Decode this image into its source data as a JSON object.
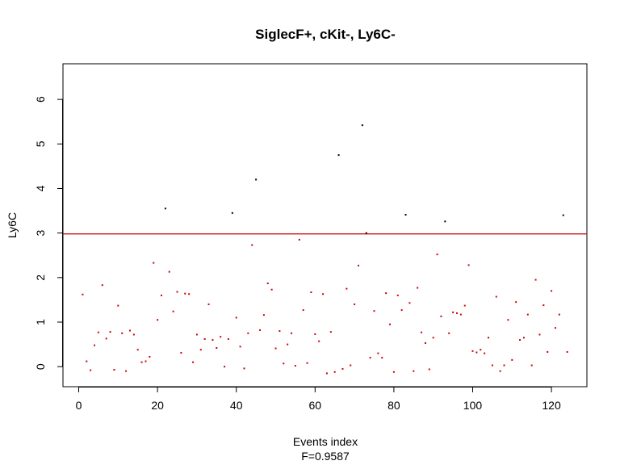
{
  "chart_data": {
    "type": "scatter",
    "title": "SiglecF+, cKit-, Ly6C-",
    "xlabel": "Events index",
    "ylabel": "Ly6C",
    "subtitle": "F=0.9587",
    "xlim": [
      -4,
      129
    ],
    "ylim": [
      -0.45,
      6.8
    ],
    "xticks": [
      0,
      20,
      40,
      60,
      80,
      100,
      120
    ],
    "yticks": [
      0,
      1,
      2,
      3,
      4,
      5,
      6
    ],
    "grid": false,
    "threshold": {
      "y": 2.98,
      "color": "#cc0000"
    },
    "colors": {
      "below": "#cc0000",
      "above": "#000000"
    },
    "points": [
      [
        1,
        1.62
      ],
      [
        2,
        0.12
      ],
      [
        3,
        -0.08
      ],
      [
        4,
        0.48
      ],
      [
        5,
        0.77
      ],
      [
        6,
        1.83
      ],
      [
        7,
        0.63
      ],
      [
        8,
        0.78
      ],
      [
        9,
        -0.07
      ],
      [
        10,
        1.37
      ],
      [
        11,
        0.75
      ],
      [
        12,
        -0.1
      ],
      [
        13,
        0.81
      ],
      [
        14,
        0.72
      ],
      [
        15,
        0.38
      ],
      [
        16,
        0.1
      ],
      [
        17,
        0.12
      ],
      [
        18,
        0.22
      ],
      [
        19,
        2.33
      ],
      [
        20,
        1.05
      ],
      [
        21,
        1.6
      ],
      [
        22,
        3.55
      ],
      [
        23,
        2.13
      ],
      [
        24,
        1.24
      ],
      [
        25,
        1.68
      ],
      [
        26,
        0.31
      ],
      [
        27,
        1.64
      ],
      [
        28,
        1.63
      ],
      [
        29,
        0.1
      ],
      [
        30,
        0.72
      ],
      [
        31,
        0.38
      ],
      [
        32,
        0.62
      ],
      [
        33,
        1.4
      ],
      [
        34,
        0.6
      ],
      [
        35,
        0.42
      ],
      [
        36,
        0.67
      ],
      [
        37,
        0.0
      ],
      [
        38,
        0.62
      ],
      [
        39,
        3.45
      ],
      [
        40,
        1.1
      ],
      [
        41,
        0.45
      ],
      [
        42,
        -0.04
      ],
      [
        43,
        0.75
      ],
      [
        44,
        2.73
      ],
      [
        45,
        4.2
      ],
      [
        46,
        0.82
      ],
      [
        47,
        1.16
      ],
      [
        48,
        1.87
      ],
      [
        49,
        1.73
      ],
      [
        50,
        0.41
      ],
      [
        51,
        0.8
      ],
      [
        52,
        0.07
      ],
      [
        53,
        0.5
      ],
      [
        54,
        0.75
      ],
      [
        55,
        0.02
      ],
      [
        56,
        2.85
      ],
      [
        57,
        1.27
      ],
      [
        58,
        0.08
      ],
      [
        59,
        1.67
      ],
      [
        60,
        0.73
      ],
      [
        61,
        0.57
      ],
      [
        62,
        1.63
      ],
      [
        63,
        -0.15
      ],
      [
        64,
        0.78
      ],
      [
        65,
        -0.12
      ],
      [
        66,
        4.75
      ],
      [
        67,
        -0.05
      ],
      [
        68,
        1.75
      ],
      [
        69,
        0.03
      ],
      [
        70,
        1.4
      ],
      [
        71,
        2.27
      ],
      [
        72,
        5.42
      ],
      [
        73,
        3.0
      ],
      [
        74,
        0.2
      ],
      [
        75,
        1.25
      ],
      [
        76,
        0.3
      ],
      [
        77,
        0.2
      ],
      [
        78,
        1.65
      ],
      [
        79,
        0.95
      ],
      [
        80,
        -0.12
      ],
      [
        81,
        1.6
      ],
      [
        82,
        1.27
      ],
      [
        83,
        3.41
      ],
      [
        84,
        1.43
      ],
      [
        85,
        -0.1
      ],
      [
        86,
        1.77
      ],
      [
        87,
        0.77
      ],
      [
        88,
        0.53
      ],
      [
        89,
        -0.06
      ],
      [
        90,
        0.65
      ],
      [
        91,
        2.52
      ],
      [
        92,
        1.13
      ],
      [
        93,
        3.26
      ],
      [
        94,
        0.75
      ],
      [
        95,
        1.22
      ],
      [
        96,
        1.2
      ],
      [
        97,
        1.17
      ],
      [
        98,
        1.37
      ],
      [
        99,
        2.28
      ],
      [
        100,
        0.35
      ],
      [
        101,
        0.32
      ],
      [
        102,
        0.38
      ],
      [
        103,
        0.3
      ],
      [
        104,
        0.65
      ],
      [
        105,
        0.03
      ],
      [
        106,
        1.57
      ],
      [
        107,
        -0.1
      ],
      [
        108,
        0.03
      ],
      [
        109,
        1.05
      ],
      [
        110,
        0.15
      ],
      [
        111,
        1.45
      ],
      [
        112,
        0.6
      ],
      [
        113,
        0.65
      ],
      [
        114,
        1.17
      ],
      [
        115,
        0.03
      ],
      [
        116,
        1.95
      ],
      [
        117,
        0.72
      ],
      [
        118,
        1.38
      ],
      [
        119,
        0.33
      ],
      [
        120,
        1.7
      ],
      [
        121,
        0.87
      ],
      [
        122,
        1.17
      ],
      [
        123,
        3.4
      ],
      [
        124,
        0.33
      ]
    ]
  }
}
